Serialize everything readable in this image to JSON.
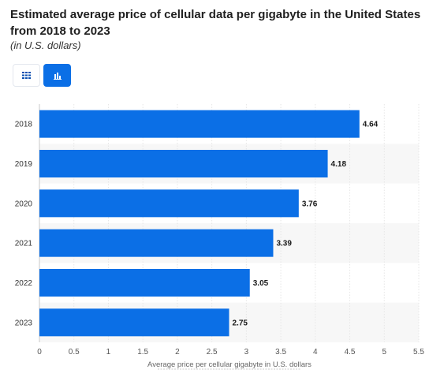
{
  "header": {
    "title": "Estimated average price of cellular data per gigabyte in the United States from 2018 to 2023",
    "subtitle": "(in U.S. dollars)"
  },
  "toolbar": {
    "table_icon": "grid-icon",
    "chart_icon": "bar-chart-icon",
    "active_color": "#0b6fe6"
  },
  "chart_data": {
    "type": "bar",
    "orientation": "horizontal",
    "categories": [
      "2018",
      "2019",
      "2020",
      "2021",
      "2022",
      "2023"
    ],
    "values": [
      4.64,
      4.18,
      3.76,
      3.39,
      3.05,
      2.75
    ],
    "data_labels": [
      "4.64",
      "4.18",
      "3.76",
      "3.39",
      "3.05",
      "2.75"
    ],
    "xlabel": "Average price per cellular gigabyte in U.S. dollars",
    "ylabel": "",
    "xlim": [
      0,
      5.5
    ],
    "xticks": [
      "0",
      "0.5",
      "1",
      "1.5",
      "2",
      "2.5",
      "3",
      "3.5",
      "4",
      "4.5",
      "5",
      "5.5"
    ],
    "grid": true,
    "bar_color": "#0b6fe6",
    "band_color": "#f7f7f7"
  }
}
